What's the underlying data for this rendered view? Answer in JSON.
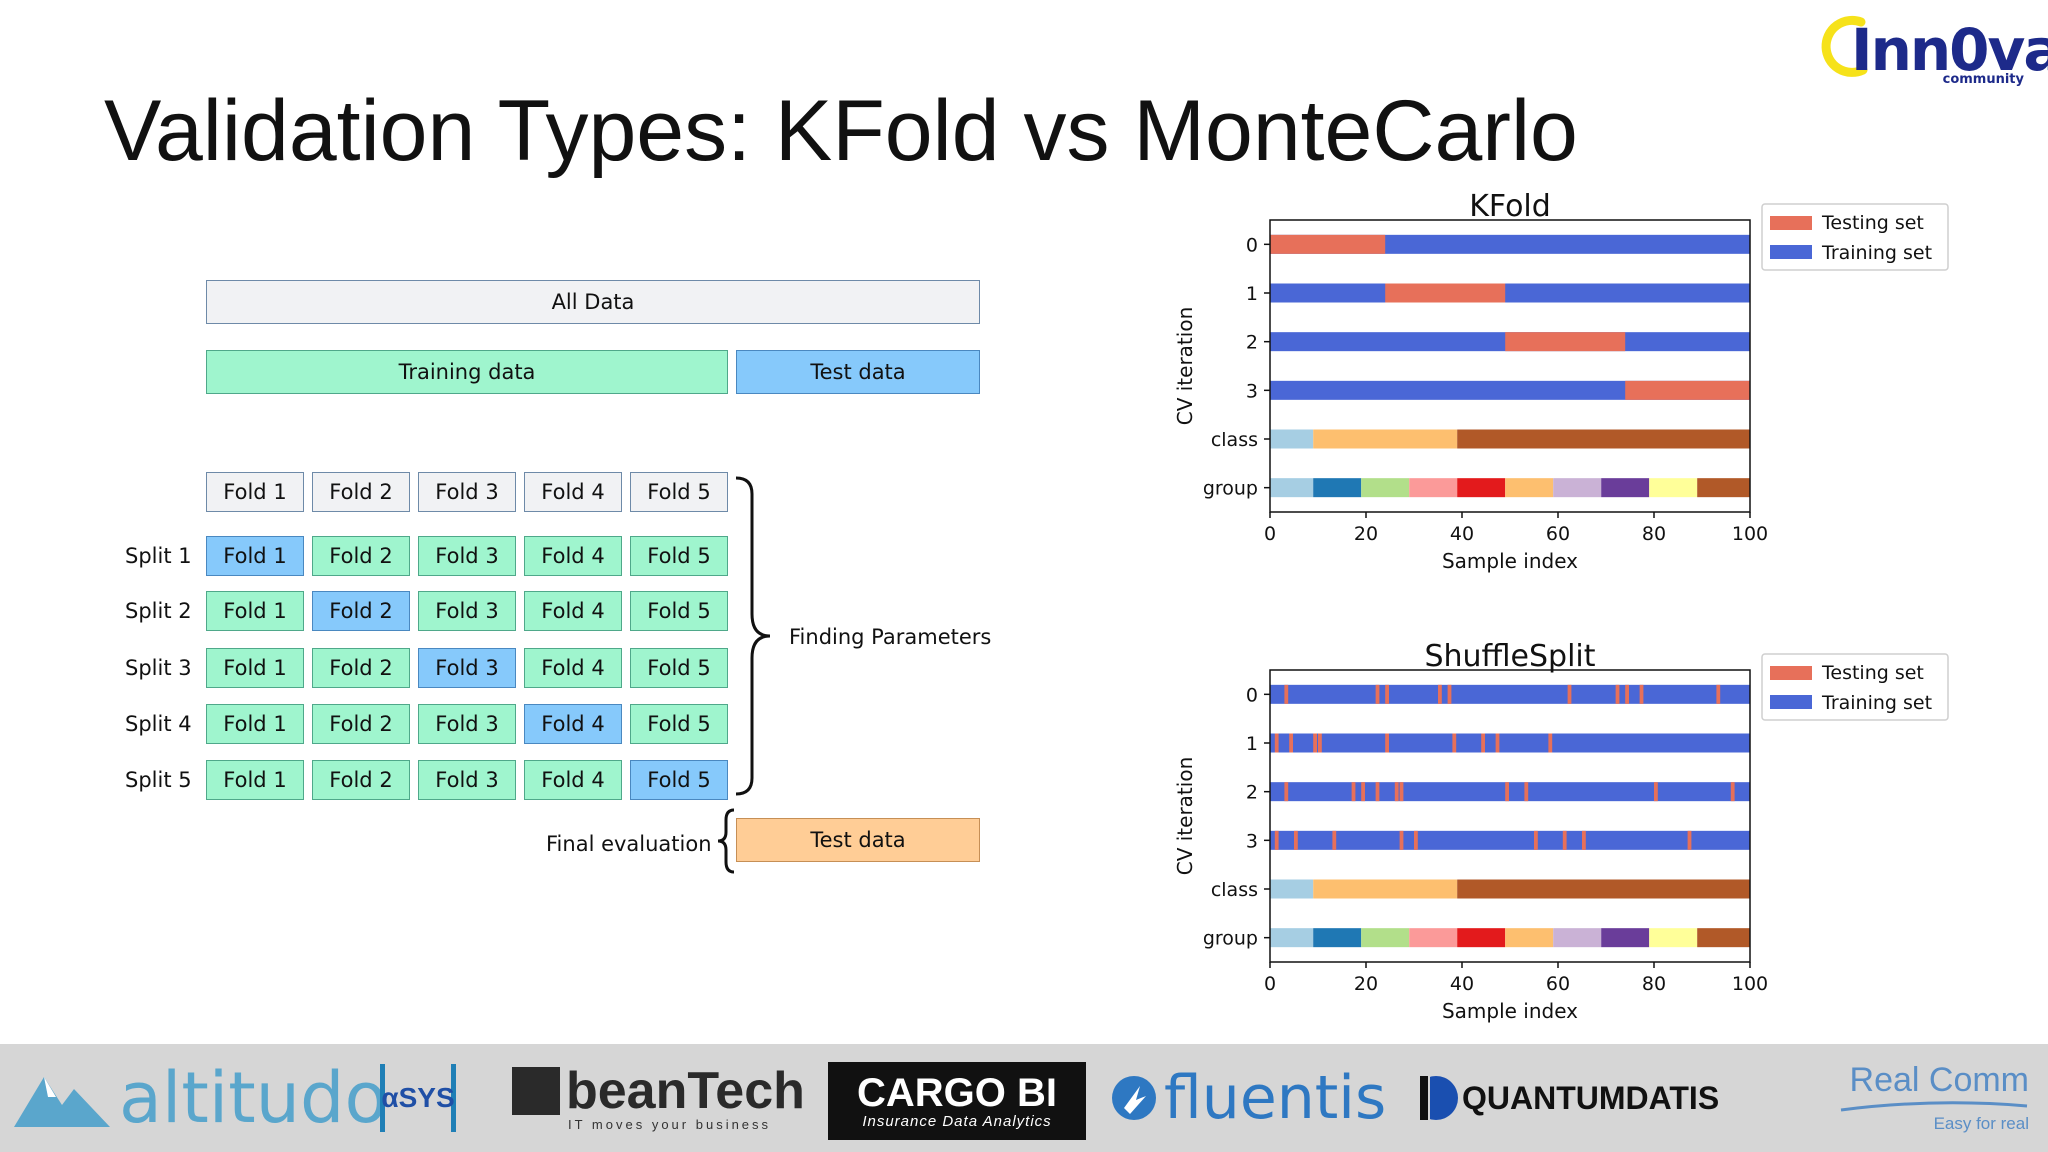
{
  "title": "Validation Types: KFold vs MonteCarlo",
  "logo": {
    "text": "Inn0va",
    "sub": "community"
  },
  "diagram": {
    "all_data": "All Data",
    "training": "Training data",
    "test": "Test data",
    "folds": [
      "Fold 1",
      "Fold 2",
      "Fold 3",
      "Fold 4",
      "Fold 5"
    ],
    "splits": [
      "Split 1",
      "Split 2",
      "Split 3",
      "Split 4",
      "Split 5"
    ],
    "finding": "Finding Parameters",
    "final_eval": "Final evaluation",
    "final_test": "Test data"
  },
  "colors": {
    "testing": "#e7705a",
    "training": "#4a67d6",
    "class": [
      "#a6cee3",
      "#fdbf6f",
      "#b15928"
    ],
    "group": [
      "#a6cee3",
      "#1f78b4",
      "#b2df8a",
      "#fb9a99",
      "#e31a1c",
      "#fdbf6f",
      "#cab2d6",
      "#6a3d9a",
      "#ffff99",
      "#b15928"
    ]
  },
  "chart_data": [
    {
      "type": "bar",
      "title": "KFold",
      "xlabel": "Sample index",
      "ylabel": "CV iteration",
      "xlim": [
        0,
        100
      ],
      "xticks": [
        0,
        20,
        40,
        60,
        80,
        100
      ],
      "rows": [
        "0",
        "1",
        "2",
        "3",
        "class",
        "group"
      ],
      "legend": [
        "Testing set",
        "Training set"
      ],
      "legend_position": "outside-right",
      "test_ranges": [
        [
          [
            0,
            24
          ]
        ],
        [
          [
            24,
            49
          ]
        ],
        [
          [
            49,
            74
          ]
        ],
        [
          [
            74,
            100
          ]
        ]
      ],
      "class_bounds": [
        0,
        9,
        39,
        100
      ],
      "group_bounds": [
        0,
        9,
        19,
        29,
        39,
        49,
        59,
        69,
        79,
        89,
        100
      ]
    },
    {
      "type": "bar",
      "title": "ShuffleSplit",
      "xlabel": "Sample index",
      "ylabel": "CV iteration",
      "xlim": [
        0,
        100
      ],
      "xticks": [
        0,
        20,
        40,
        60,
        80,
        100
      ],
      "rows": [
        "0",
        "1",
        "2",
        "3",
        "class",
        "group"
      ],
      "legend": [
        "Testing set",
        "Training set"
      ],
      "legend_position": "outside-right",
      "test_points": [
        [
          3,
          22,
          24,
          35,
          37,
          62,
          72,
          74,
          77,
          93
        ],
        [
          1,
          4,
          9,
          10,
          24,
          38,
          44,
          47,
          58
        ],
        [
          3,
          17,
          19,
          22,
          26,
          27,
          49,
          53,
          80,
          96
        ],
        [
          1,
          5,
          13,
          27,
          30,
          55,
          61,
          65,
          87
        ]
      ],
      "class_bounds": [
        0,
        9,
        39,
        100
      ],
      "group_bounds": [
        0,
        9,
        19,
        29,
        39,
        49,
        59,
        69,
        79,
        89,
        100
      ]
    }
  ],
  "footer": {
    "sponsors": [
      "altitudo",
      "αSYS",
      "beanTech",
      "IT moves your business",
      "CARGO BI",
      "Insurance Data Analytics",
      "fluentis",
      "QUANTUMDATIS",
      "Real Comm",
      "Easy for real"
    ]
  }
}
